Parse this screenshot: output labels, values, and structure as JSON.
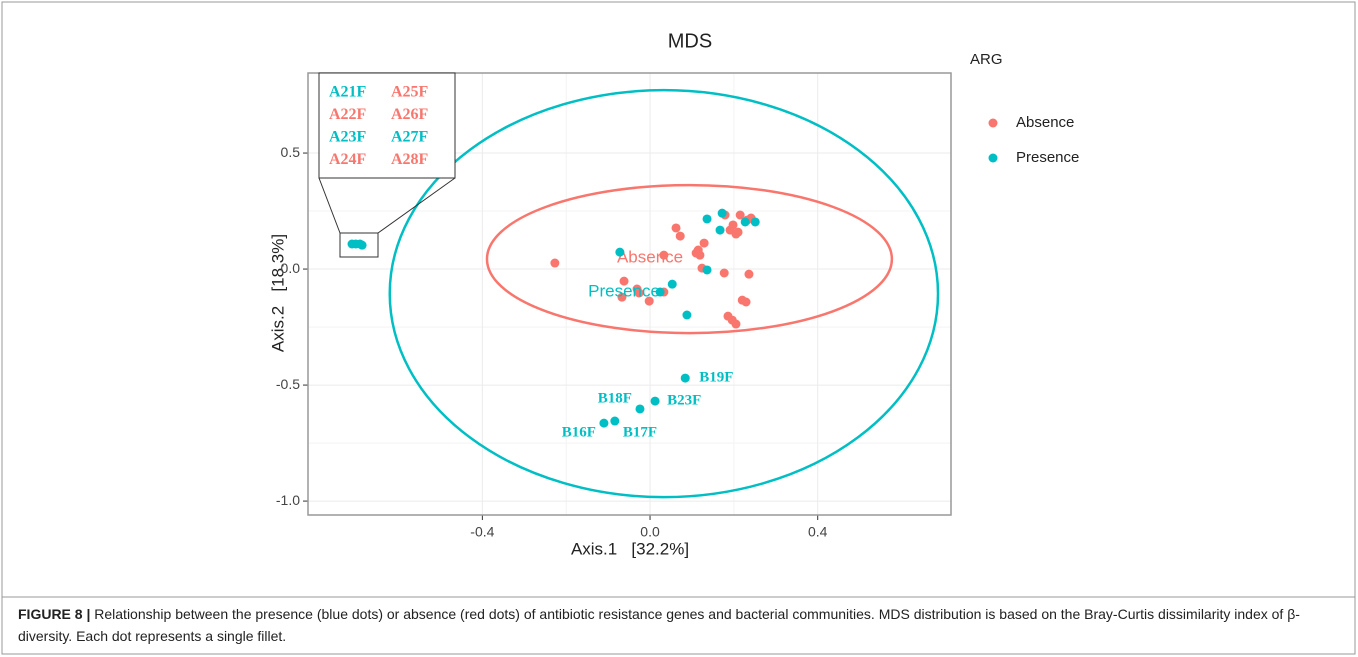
{
  "chart_data": {
    "type": "scatter",
    "title": "MDS",
    "x_label": "Axis.1   [32.2%]",
    "y_label": "Axis.2   [18.3%]",
    "legend_title": "ARG",
    "legend_position": "right",
    "grid": true,
    "xlim": [
      -0.816,
      0.718
    ],
    "ylim": [
      -1.06,
      0.845
    ],
    "xticks": [
      {
        "value": -0.4,
        "label": "-0.4"
      },
      {
        "value": 0,
        "label": "0.0"
      },
      {
        "value": 0.4,
        "label": "0.4"
      }
    ],
    "yticks": [
      {
        "value": -1.0,
        "label": "-1.0"
      },
      -0.5,
      {
        "value": 0,
        "label": "0.0"
      },
      0.5
    ],
    "series": [
      {
        "name": "Absence",
        "color": "#f8766d",
        "x": [
          -0.227,
          -0.062,
          -0.067,
          -0.031,
          -0.026,
          -0.002,
          0.033,
          0.033,
          0.062,
          0.072,
          0.11,
          0.119,
          0.115,
          0.124,
          0.129,
          0.177,
          0.179,
          0.191,
          0.198,
          0.205,
          0.215,
          0.21,
          0.22,
          0.229,
          0.236,
          0.232,
          0.241,
          0.186,
          0.196,
          0.205
        ],
        "values": [
          0.026,
          -0.052,
          -0.121,
          -0.086,
          -0.103,
          -0.138,
          -0.099,
          0.06,
          0.177,
          0.142,
          0.069,
          0.06,
          0.082,
          0.004,
          0.112,
          -0.017,
          0.233,
          0.168,
          0.19,
          0.151,
          0.233,
          0.159,
          -0.134,
          -0.142,
          -0.022,
          0.211,
          0.22,
          -0.203,
          -0.22,
          -0.237
        ],
        "ellipse": {
          "cx": 0.094,
          "cy": 0.043,
          "rx": 0.483,
          "ry": 0.319
        },
        "label_at": [
          0.0,
          0.047
        ]
      },
      {
        "name": "Presence",
        "color": "#00bfc4",
        "x": [
          -0.711,
          -0.702,
          -0.692,
          -0.687,
          -0.072,
          0.053,
          0.024,
          0.088,
          0.136,
          0.136,
          0.167,
          0.172,
          0.227,
          0.251,
          0.084,
          0.012,
          -0.024,
          -0.084,
          -0.11
        ],
        "values": [
          0.108,
          0.108,
          0.108,
          0.103,
          0.073,
          -0.065,
          -0.099,
          -0.198,
          0.216,
          -0.004,
          0.168,
          0.241,
          0.203,
          0.203,
          -0.47,
          -0.569,
          -0.603,
          -0.655,
          -0.664
        ],
        "ellipse": {
          "cx": 0.033,
          "cy": -0.106,
          "rx": 0.654,
          "ry": 0.877
        },
        "label_at": [
          -0.062,
          -0.099
        ]
      }
    ],
    "annotations": [
      "B19F",
      "B23F",
      "B18F",
      "B17F",
      "B16F"
    ],
    "inset_labels": [
      {
        "text": "A21F",
        "color": "#00bfc4"
      },
      {
        "text": "A25F",
        "color": "#f8766d"
      },
      {
        "text": "A22F",
        "color": "#f8766d"
      },
      {
        "text": "A26F",
        "color": "#f8766d"
      },
      {
        "text": "A23F",
        "color": "#00bfc4"
      },
      {
        "text": "A27F",
        "color": "#00bfc4"
      },
      {
        "text": "A24F",
        "color": "#f8766d"
      },
      {
        "text": "A28F",
        "color": "#f8766d"
      }
    ]
  },
  "caption": {
    "label": "FIGURE 8 |",
    "text": " Relationship between the presence (blue dots) or absence (red dots) of antibiotic resistance genes and bacterial communities. MDS distribution is based on the Bray-Curtis dissimilarity index of β-diversity. Each dot represents a single fillet."
  }
}
